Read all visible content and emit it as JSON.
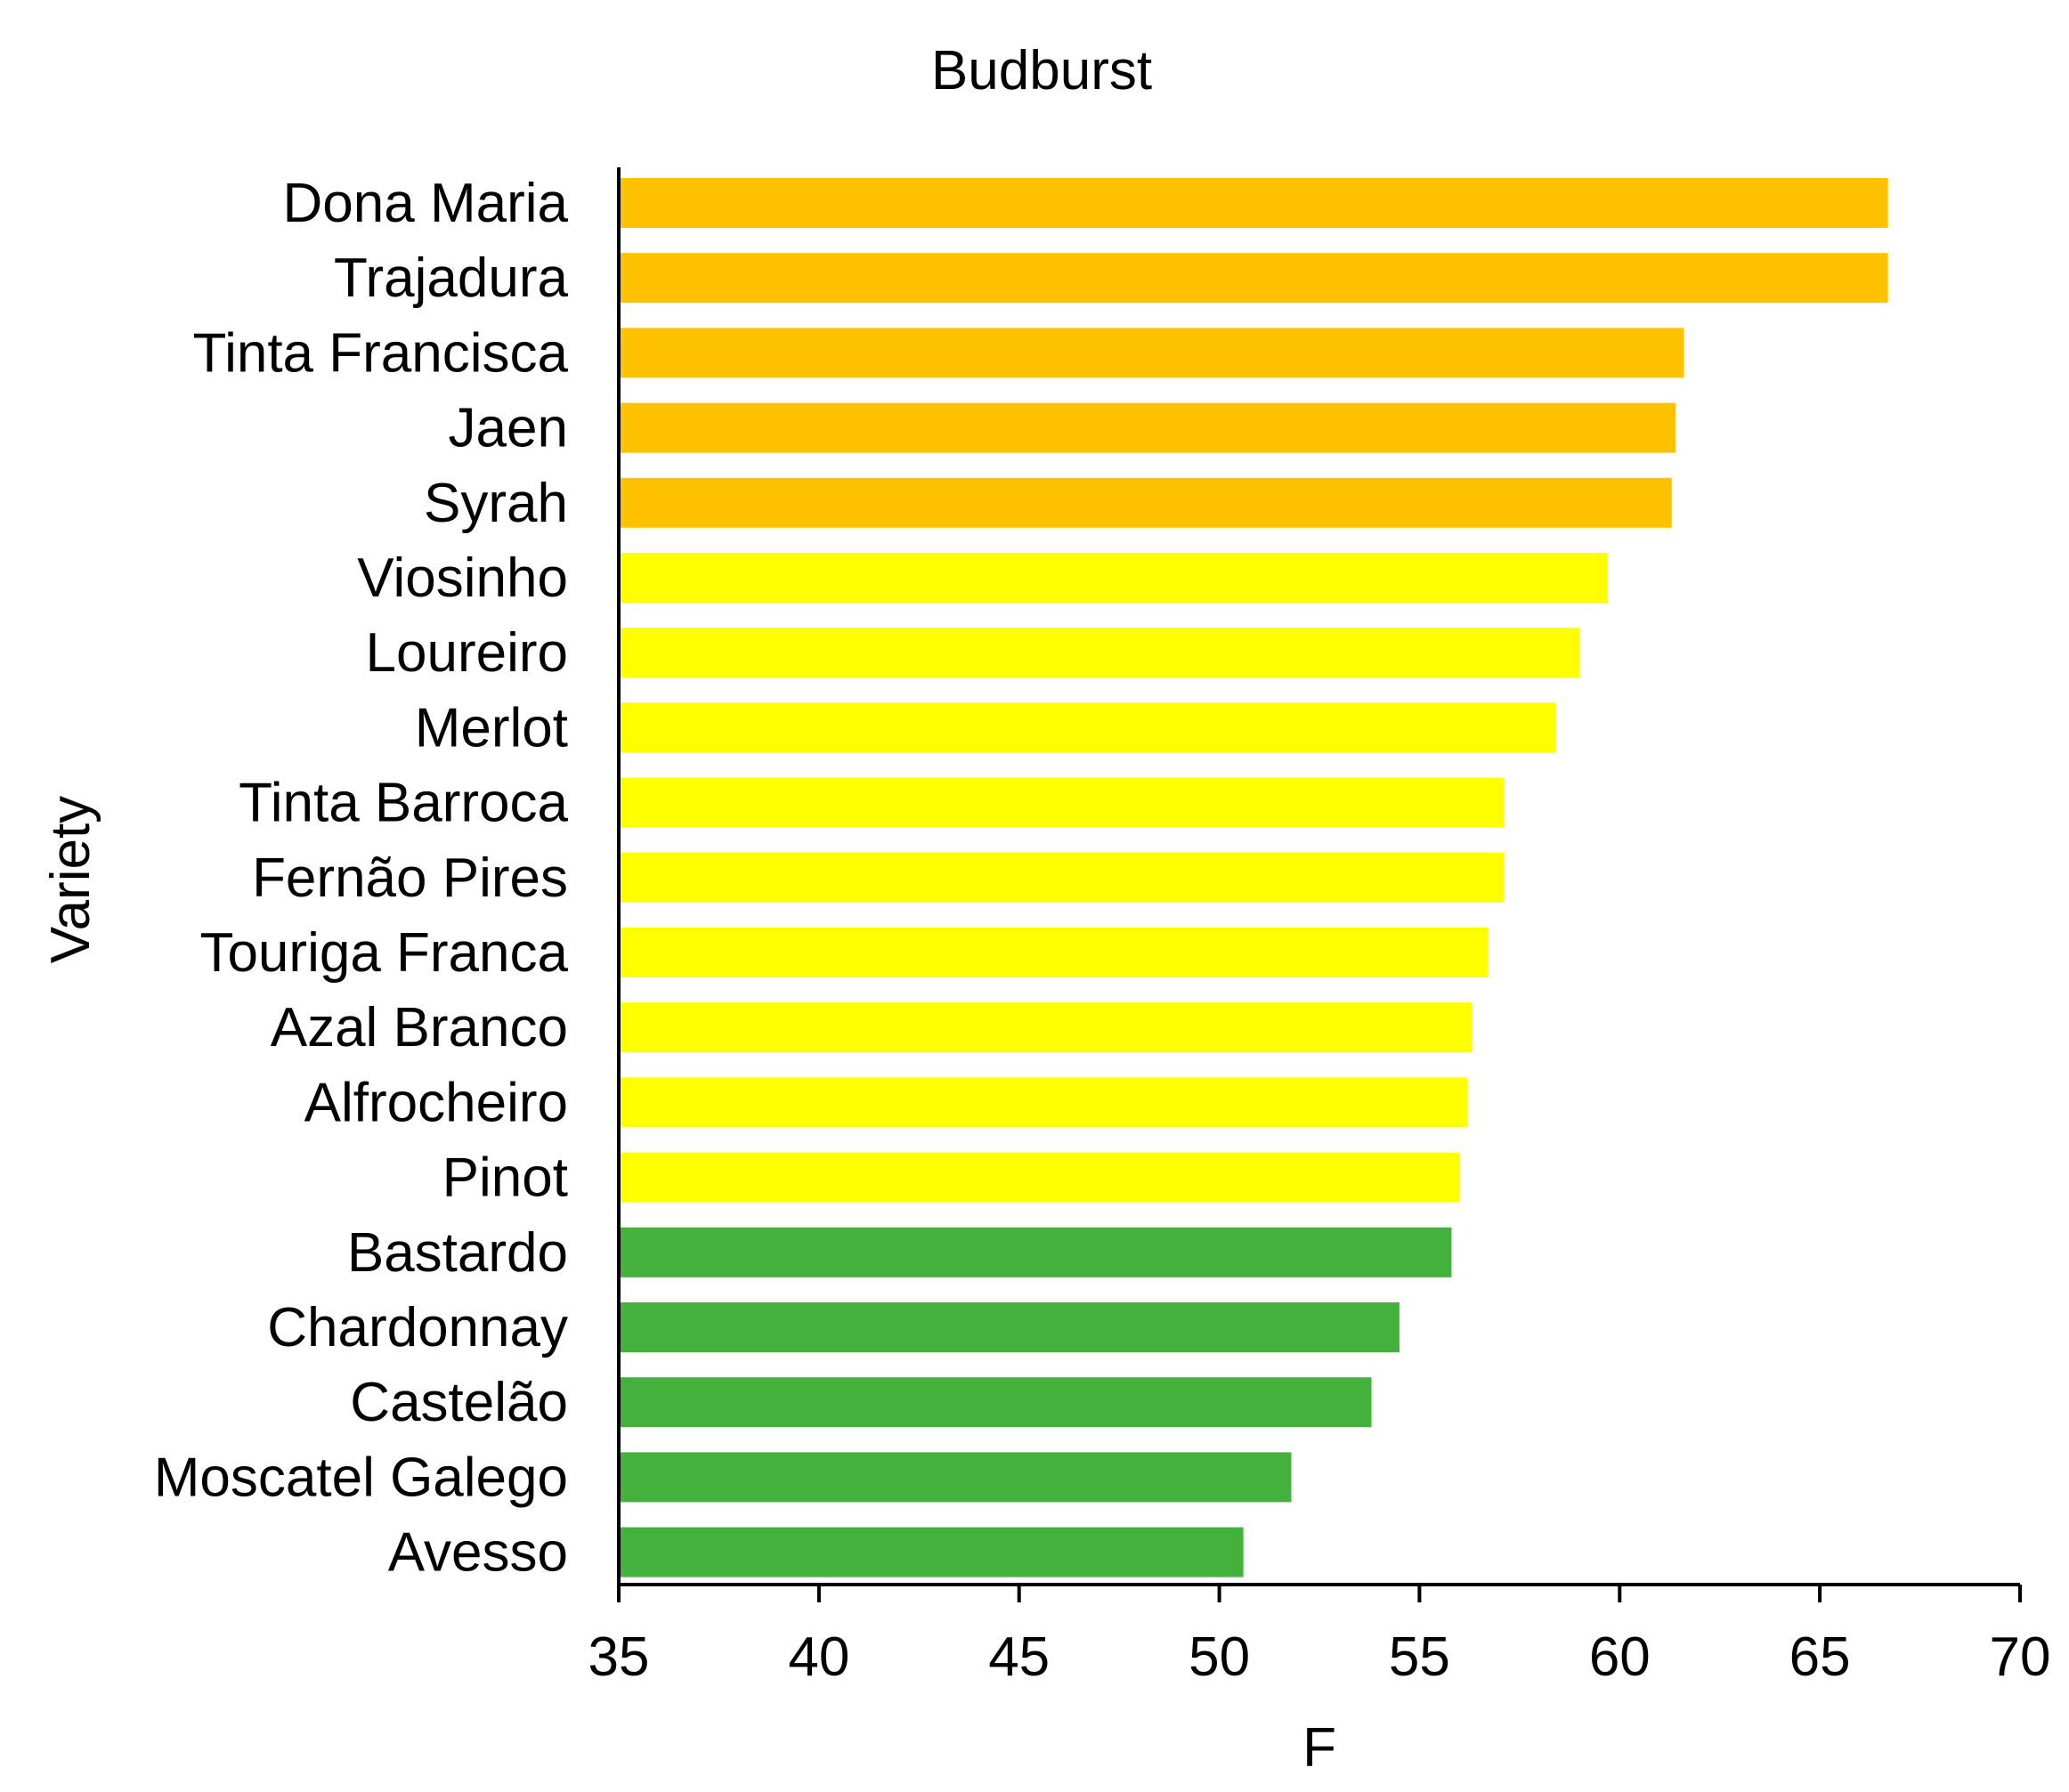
{
  "chart_data": {
    "type": "bar",
    "orientation": "horizontal",
    "title": "Budburst",
    "xlabel": "F",
    "ylabel": "Variety",
    "xlim": [
      35,
      70
    ],
    "xticks": [
      "35",
      "40",
      "45",
      "50",
      "55",
      "60",
      "65",
      "70"
    ],
    "grid": false,
    "legend": "none",
    "categories": [
      "Dona Maria",
      "Trajadura",
      "Tinta Francisca",
      "Jaen",
      "Syrah",
      "Viosinho",
      "Loureiro",
      "Merlot",
      "Tinta Barroca",
      "Fernão Pires",
      "Touriga Franca",
      "Azal Branco",
      "Alfrocheiro",
      "Pinot",
      "Bastardo",
      "Chardonnay",
      "Castelão",
      "Moscatel Galego",
      "Avesso"
    ],
    "values": [
      66.7,
      66.7,
      61.6,
      61.4,
      61.3,
      59.7,
      59.0,
      58.4,
      57.1,
      57.1,
      56.7,
      56.3,
      56.2,
      56.0,
      55.8,
      54.5,
      53.8,
      51.8,
      50.6
    ],
    "bar_colors": [
      "#FFC200",
      "#FFC200",
      "#FFC200",
      "#FFC200",
      "#FFC200",
      "#FFFF00",
      "#FFFF00",
      "#FFFF00",
      "#FFFF00",
      "#FFFF00",
      "#FFFF00",
      "#FFFF00",
      "#FFFF00",
      "#FFFF00",
      "#43B13C",
      "#43B13C",
      "#43B13C",
      "#43B13C",
      "#43B13C"
    ]
  }
}
